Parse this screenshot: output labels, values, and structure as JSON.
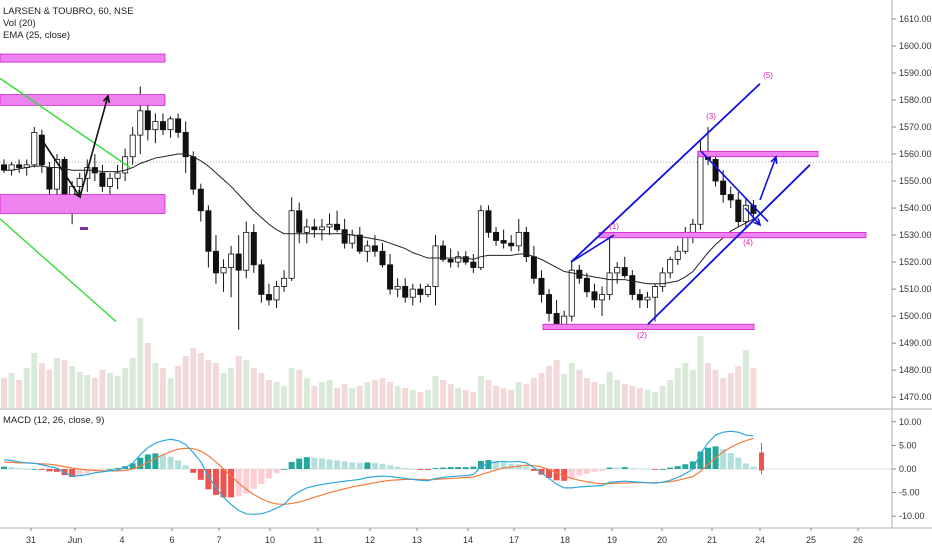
{
  "legend": {
    "title": "LARSEN & TOUBRO, 60, NSE",
    "volume": "Vol (20)",
    "ema": "EMA (25, close)",
    "macd": "MACD (12, 26, close, 9)"
  },
  "colors": {
    "up": "#ffffff",
    "down": "#111111",
    "ema": "#222222",
    "vol_up": "#d9ead9",
    "vol_down": "#f3d9da",
    "macd_line": "#2ea8dc",
    "signal_line": "#f47c3c",
    "hist_pos_strong": "#26a69a",
    "hist_pos_weak": "#b2dfdb",
    "hist_neg_strong": "#ef5350",
    "hist_neg_weak": "#ffcdd2",
    "zone": "#ee82ee",
    "zone_border": "#d020d0",
    "trend_blue": "#1010e0",
    "trend_green": "#33dd33",
    "wave": "#e01fb0"
  },
  "chart_data": {
    "type": "candlestick",
    "price_axis": {
      "ylim": [
        1466,
        1617
      ],
      "ticks": [
        "1610.00",
        "1600.00",
        "1590.00",
        "1580.00",
        "1570.00",
        "1560.00",
        "1550.00",
        "1540.00",
        "1530.00",
        "1520.00",
        "1510.00",
        "1500.00",
        "1490.00",
        "1480.00",
        "1470.00"
      ]
    },
    "macd_axis": {
      "ylim": [
        -12.5,
        12.5
      ],
      "ticks": [
        "10.00",
        "5.00",
        "0.00",
        "-5.00",
        "-10.00"
      ]
    },
    "x_axis": {
      "ticks": [
        "31",
        "Jun",
        "4",
        "6",
        "7",
        "10",
        "11",
        "12",
        "13",
        "14",
        "17",
        "18",
        "19",
        "20",
        "21",
        "24",
        "25",
        "26"
      ]
    },
    "candles": [
      [
        1556,
        1558,
        1553,
        1554
      ],
      [
        1554,
        1557,
        1552,
        1556
      ],
      [
        1556,
        1558,
        1553,
        1555
      ],
      [
        1555,
        1558,
        1552,
        1556
      ],
      [
        1556,
        1570,
        1555,
        1568
      ],
      [
        1567,
        1569,
        1553,
        1556
      ],
      [
        1555,
        1557,
        1545,
        1547
      ],
      [
        1547,
        1560,
        1544,
        1558
      ],
      [
        1558,
        1559,
        1538,
        1541
      ],
      [
        1541,
        1550,
        1534,
        1548
      ],
      [
        1548,
        1553,
        1544,
        1551
      ],
      [
        1551,
        1558,
        1546,
        1555
      ],
      [
        1555,
        1560,
        1550,
        1553
      ],
      [
        1553,
        1556,
        1546,
        1548
      ],
      [
        1548,
        1553,
        1545,
        1551
      ],
      [
        1551,
        1556,
        1547,
        1553
      ],
      [
        1553,
        1562,
        1550,
        1559
      ],
      [
        1559,
        1570,
        1556,
        1567
      ],
      [
        1567,
        1585,
        1560,
        1576
      ],
      [
        1576,
        1580,
        1565,
        1569
      ],
      [
        1569,
        1575,
        1564,
        1572
      ],
      [
        1572,
        1575,
        1567,
        1569
      ],
      [
        1569,
        1574,
        1566,
        1573
      ],
      [
        1573,
        1575,
        1566,
        1568
      ],
      [
        1568,
        1572,
        1553,
        1559
      ],
      [
        1559,
        1561,
        1545,
        1547
      ],
      [
        1547,
        1549,
        1535,
        1539
      ],
      [
        1539,
        1541,
        1518,
        1524
      ],
      [
        1524,
        1530,
        1512,
        1516
      ],
      [
        1516,
        1521,
        1509,
        1518
      ],
      [
        1518,
        1526,
        1507,
        1523
      ],
      [
        1523,
        1530,
        1495,
        1517
      ],
      [
        1517,
        1535,
        1514,
        1531
      ],
      [
        1531,
        1534,
        1516,
        1519
      ],
      [
        1519,
        1521,
        1505,
        1508
      ],
      [
        1508,
        1512,
        1504,
        1506
      ],
      [
        1506,
        1513,
        1503,
        1511
      ],
      [
        1511,
        1517,
        1509,
        1514
      ],
      [
        1514,
        1544,
        1513,
        1539
      ],
      [
        1539,
        1542,
        1527,
        1531
      ],
      [
        1531,
        1536,
        1527,
        1533
      ],
      [
        1533,
        1536,
        1529,
        1532
      ],
      [
        1532,
        1536,
        1528,
        1533
      ],
      [
        1533,
        1538,
        1530,
        1534
      ],
      [
        1534,
        1539,
        1531,
        1532
      ],
      [
        1532,
        1536,
        1525,
        1527
      ],
      [
        1527,
        1532,
        1525,
        1530
      ],
      [
        1530,
        1533,
        1523,
        1524
      ],
      [
        1524,
        1528,
        1520,
        1526
      ],
      [
        1526,
        1530,
        1522,
        1524
      ],
      [
        1524,
        1527,
        1518,
        1519
      ],
      [
        1519,
        1523,
        1508,
        1510
      ],
      [
        1510,
        1514,
        1507,
        1511
      ],
      [
        1511,
        1514,
        1505,
        1507
      ],
      [
        1507,
        1512,
        1504,
        1510
      ],
      [
        1510,
        1512,
        1505,
        1508
      ],
      [
        1508,
        1512,
        1507,
        1511
      ],
      [
        1511,
        1530,
        1504,
        1526
      ],
      [
        1526,
        1528,
        1520,
        1521
      ],
      [
        1521,
        1525,
        1518,
        1520
      ],
      [
        1520,
        1524,
        1518,
        1522
      ],
      [
        1522,
        1524,
        1519,
        1520
      ],
      [
        1520,
        1523,
        1516,
        1518
      ],
      [
        1518,
        1541,
        1517,
        1539
      ],
      [
        1539,
        1541,
        1529,
        1531
      ],
      [
        1531,
        1533,
        1526,
        1528
      ],
      [
        1528,
        1532,
        1525,
        1527
      ],
      [
        1527,
        1530,
        1524,
        1526
      ],
      [
        1526,
        1536,
        1524,
        1531
      ],
      [
        1531,
        1533,
        1520,
        1522
      ],
      [
        1522,
        1526,
        1512,
        1514
      ],
      [
        1514,
        1517,
        1505,
        1508
      ],
      [
        1508,
        1510,
        1498,
        1501
      ],
      [
        1501,
        1506,
        1496,
        1497
      ],
      [
        1497,
        1502,
        1495,
        1500
      ],
      [
        1500,
        1520,
        1498,
        1517
      ],
      [
        1517,
        1519,
        1512,
        1514
      ],
      [
        1514,
        1516,
        1507,
        1509
      ],
      [
        1509,
        1512,
        1503,
        1506
      ],
      [
        1506,
        1511,
        1500,
        1508
      ],
      [
        1508,
        1531,
        1506,
        1516
      ],
      [
        1516,
        1520,
        1512,
        1518
      ],
      [
        1518,
        1522,
        1514,
        1515
      ],
      [
        1515,
        1517,
        1506,
        1508
      ],
      [
        1508,
        1510,
        1503,
        1506
      ],
      [
        1506,
        1509,
        1503,
        1507
      ],
      [
        1507,
        1512,
        1498,
        1511
      ],
      [
        1511,
        1518,
        1509,
        1516
      ],
      [
        1516,
        1522,
        1514,
        1521
      ],
      [
        1521,
        1526,
        1519,
        1524
      ],
      [
        1524,
        1533,
        1523,
        1531
      ],
      [
        1531,
        1536,
        1527,
        1534
      ],
      [
        1534,
        1565,
        1532,
        1561
      ],
      [
        1561,
        1570,
        1556,
        1558
      ],
      [
        1558,
        1560,
        1548,
        1550
      ],
      [
        1550,
        1554,
        1542,
        1545
      ],
      [
        1545,
        1548,
        1540,
        1543
      ],
      [
        1543,
        1546,
        1533,
        1535
      ],
      [
        1535,
        1544,
        1533,
        1541
      ],
      [
        1541,
        1543,
        1535,
        1538
      ]
    ],
    "ema": [
      1554,
      1554,
      1554.5,
      1555,
      1555.5,
      1555.5,
      1555,
      1555,
      1554.5,
      1554,
      1554,
      1554,
      1554,
      1553.5,
      1553.5,
      1553.5,
      1554,
      1555,
      1556.5,
      1557.5,
      1558.5,
      1559,
      1559.5,
      1560,
      1560,
      1559,
      1557.5,
      1555.5,
      1553,
      1550.5,
      1548,
      1545,
      1542,
      1539,
      1536.5,
      1534,
      1532,
      1530.5,
      1530.5,
      1530.5,
      1530.5,
      1530.5,
      1530.5,
      1530.5,
      1530.5,
      1530.5,
      1530,
      1529.5,
      1529,
      1528.5,
      1528,
      1527,
      1526,
      1525,
      1523.5,
      1522.5,
      1521.5,
      1521.5,
      1521.5,
      1521.5,
      1521.5,
      1521.5,
      1521,
      1522,
      1522.5,
      1522.5,
      1522.5,
      1522.5,
      1523,
      1523,
      1522,
      1521,
      1519.5,
      1518,
      1516.5,
      1516,
      1515.5,
      1515,
      1514.5,
      1514,
      1513.5,
      1513.5,
      1513.5,
      1513,
      1512.5,
      1512,
      1512,
      1512,
      1512.5,
      1513,
      1514.5,
      1516.5,
      1520,
      1523.5,
      1526.5,
      1529,
      1531.5,
      1533,
      1534.5,
      1536
    ],
    "volume": [
      0.3,
      0.35,
      0.28,
      0.4,
      0.55,
      0.45,
      0.38,
      0.5,
      0.48,
      0.42,
      0.36,
      0.33,
      0.3,
      0.38,
      0.35,
      0.32,
      0.4,
      0.5,
      0.9,
      0.65,
      0.45,
      0.4,
      0.3,
      0.42,
      0.52,
      0.6,
      0.55,
      0.48,
      0.45,
      0.35,
      0.4,
      0.52,
      0.48,
      0.4,
      0.35,
      0.28,
      0.26,
      0.22,
      0.4,
      0.38,
      0.3,
      0.22,
      0.26,
      0.28,
      0.2,
      0.24,
      0.2,
      0.22,
      0.26,
      0.28,
      0.3,
      0.26,
      0.22,
      0.2,
      0.18,
      0.16,
      0.18,
      0.32,
      0.28,
      0.24,
      0.2,
      0.18,
      0.16,
      0.32,
      0.28,
      0.22,
      0.2,
      0.18,
      0.26,
      0.24,
      0.3,
      0.35,
      0.42,
      0.48,
      0.34,
      0.45,
      0.38,
      0.3,
      0.26,
      0.24,
      0.36,
      0.28,
      0.24,
      0.22,
      0.2,
      0.18,
      0.16,
      0.22,
      0.28,
      0.4,
      0.45,
      0.38,
      0.72,
      0.45,
      0.38,
      0.3,
      0.35,
      0.42,
      0.58,
      0.4
    ],
    "macd": [
      2.0,
      1.8,
      1.5,
      1.3,
      1.2,
      0.9,
      0.5,
      0.2,
      -0.8,
      -1.5,
      -1.4,
      -1.2,
      -0.8,
      -0.6,
      -0.4,
      -0.2,
      0.3,
      1.2,
      3.0,
      4.5,
      5.5,
      6.0,
      6.3,
      6.0,
      5.2,
      3.5,
      1.5,
      -1.5,
      -4.0,
      -6.0,
      -7.5,
      -8.8,
      -9.5,
      -9.6,
      -9.5,
      -9.0,
      -8.3,
      -7.5,
      -5.8,
      -4.8,
      -4.0,
      -3.6,
      -3.3,
      -3.0,
      -2.8,
      -2.6,
      -2.4,
      -2.2,
      -1.8,
      -1.6,
      -1.5,
      -1.6,
      -1.8,
      -2.0,
      -2.2,
      -2.4,
      -2.5,
      -2.0,
      -1.8,
      -1.6,
      -1.5,
      -1.4,
      -1.2,
      0.5,
      1.2,
      1.5,
      1.6,
      1.5,
      1.6,
      1.3,
      0.3,
      -0.8,
      -2.0,
      -3.2,
      -4.0,
      -4.0,
      -3.8,
      -3.7,
      -3.6,
      -3.5,
      -2.8,
      -2.7,
      -2.6,
      -2.7,
      -2.8,
      -2.9,
      -3.0,
      -2.8,
      -2.4,
      -1.8,
      -1.0,
      0.0,
      3.2,
      5.5,
      7.2,
      7.8,
      8.0,
      7.8,
      7.2,
      7.0
    ],
    "signal": [
      1.5,
      1.4,
      1.3,
      1.3,
      1.2,
      1.1,
      1.0,
      0.8,
      0.5,
      0.2,
      0.0,
      -0.2,
      -0.3,
      -0.4,
      -0.4,
      -0.4,
      -0.3,
      0.0,
      0.6,
      1.4,
      2.2,
      3.0,
      3.7,
      4.2,
      4.4,
      4.3,
      3.8,
      2.8,
      1.5,
      0.0,
      -1.5,
      -3.0,
      -4.3,
      -5.4,
      -6.3,
      -7.0,
      -7.4,
      -7.5,
      -7.3,
      -7.0,
      -6.5,
      -6.0,
      -5.5,
      -5.0,
      -4.6,
      -4.2,
      -3.8,
      -3.5,
      -3.2,
      -2.9,
      -2.6,
      -2.4,
      -2.3,
      -2.2,
      -2.2,
      -2.2,
      -2.3,
      -2.2,
      -2.1,
      -2.0,
      -1.9,
      -1.8,
      -1.7,
      -1.2,
      -0.7,
      -0.2,
      0.2,
      0.4,
      0.6,
      0.8,
      0.7,
      0.4,
      -0.1,
      -0.8,
      -1.5,
      -2.0,
      -2.4,
      -2.7,
      -3.0,
      -3.1,
      -3.1,
      -3.0,
      -3.0,
      -2.9,
      -2.9,
      -2.9,
      -2.9,
      -2.8,
      -2.7,
      -2.4,
      -2.0,
      -1.6,
      -0.5,
      1.0,
      2.4,
      3.6,
      4.6,
      5.4,
      6.0,
      6.5
    ],
    "annotations": {
      "wave_labels": [
        "(3)",
        "(5)",
        "(4)",
        "(2)",
        "(1)"
      ]
    }
  }
}
